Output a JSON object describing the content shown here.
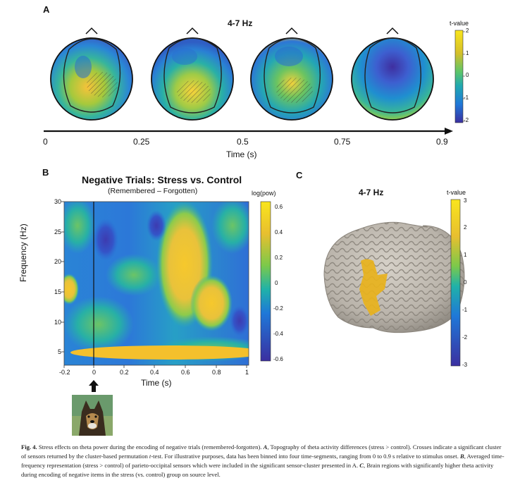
{
  "panelA": {
    "letter": "A",
    "title": "4-7 Hz",
    "colorbar": {
      "title": "t-value",
      "ticks": [
        "2",
        "1",
        "0",
        "-1",
        "-2"
      ]
    },
    "timeline": {
      "ticks": [
        "0",
        "0.25",
        "0.5",
        "0.75",
        "0.9"
      ],
      "xlabel": "Time (s)"
    }
  },
  "panelB": {
    "letter": "B",
    "title": "Negative Trials: Stress vs. Control",
    "subtitle": "(Remembered – Forgotten)",
    "colorbar": {
      "title": "log(pow)",
      "ticks": [
        "0.6",
        "0.4",
        "0.2",
        "0",
        "-0.2",
        "-0.4",
        "-0.6"
      ]
    },
    "xlabel": "Time (s)",
    "ylabel": "Frequency (Hz)",
    "xticks": [
      "-0.2",
      "0",
      "0.2",
      "0.4",
      "0.6",
      "0.8",
      "1"
    ],
    "yticks": [
      "30",
      "25",
      "20",
      "15",
      "10",
      "5"
    ]
  },
  "panelC": {
    "letter": "C",
    "title": "4-7 Hz",
    "colorbar": {
      "title": "t-value",
      "ticks": [
        "3",
        "2",
        "1",
        "0",
        "-1",
        "-2",
        "-3"
      ]
    }
  },
  "caption": {
    "label": "Fig. 4.",
    "text1": " Stress effects on theta power during the encoding of negative trials (remembered-forgotten). ",
    "a_label": "A",
    "text2": ", Topography of theta activity differences (stress > control). Crosses indicate a significant cluster of sensors returned by the cluster-based permutation ",
    "t_italic": "t",
    "text3": "-test. For illustrative purposes, data has been binned into four time-segments, ranging from 0 to 0.9 s relative to stimulus onset. ",
    "b_label": "B",
    "text4": ", Averaged time-frequency representation (stress > control) of parieto-occipital sensors which were included in the significant sensor-cluster presented in A. ",
    "c_label": "C",
    "text5": ", Brain regions with significantly higher theta activity during encoding of negative items in the stress (vs. control) group on source level."
  },
  "colors": {
    "parula_low": "#3b2fa0",
    "parula_blue": "#1f78d8",
    "parula_teal": "#20b2a8",
    "parula_green": "#7cc94a",
    "parula_yellow": "#f9e51c",
    "brain_gray": "#b9b3aa"
  },
  "chart_data": {
    "type": "heatmap",
    "title": "Negative Trials: Stress vs. Control",
    "subtitle": "(Remembered – Forgotten)",
    "xlabel": "Time (s)",
    "ylabel": "Frequency (Hz)",
    "xlim": [
      -0.2,
      1
    ],
    "ylim": [
      2,
      30
    ],
    "clim": [
      -0.65,
      0.65
    ],
    "colorbar_label": "log(pow)"
  }
}
